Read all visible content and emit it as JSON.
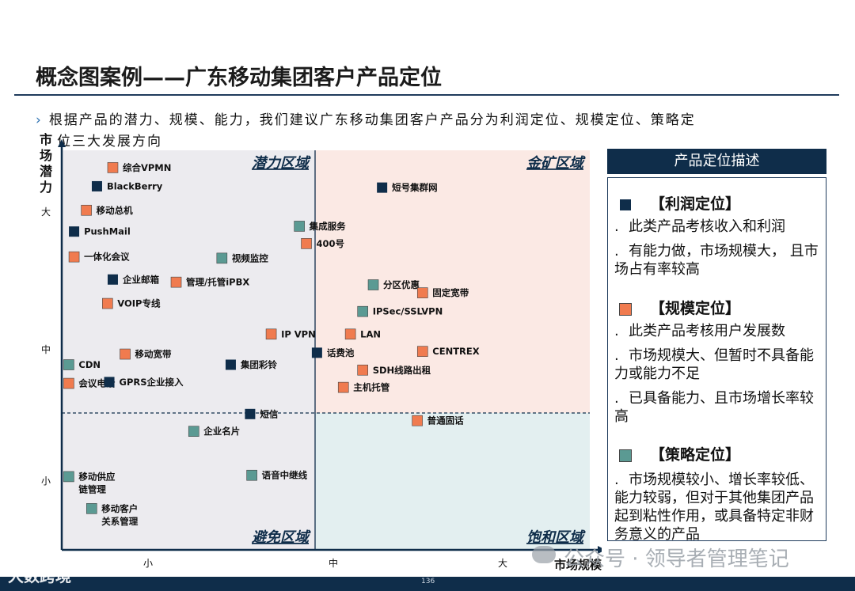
{
  "title": "概念图案例——广东移动集团客户产品定位",
  "intro": {
    "chevron": "›",
    "line1": "根据产品的潜力、规模、能力，我们建议广东移动集团客户产品分为利润定位、规模定位、策略定",
    "line2": "位三大发展方向"
  },
  "colors": {
    "profit": "#0f2d4a",
    "scale": "#f07b4f",
    "strategy": "#5b9a93",
    "quad_potential": "#ecebef",
    "quad_gold": "#fbe9e4",
    "quad_avoid": "#ecebef",
    "quad_saturated": "#e3eff0",
    "axis": "#0f2d4a",
    "quadrant_label": "#0f2d4a"
  },
  "chart_data": {
    "type": "scatter",
    "xlabel": "市场规模",
    "ylabel": "市场潜力",
    "x_ticks": [
      "小",
      "中",
      "大"
    ],
    "y_ticks": [
      "大",
      "中",
      "小"
    ],
    "xlim": [
      0,
      3
    ],
    "ylim": [
      0,
      3
    ],
    "quadrants": {
      "top_left": "潜力区域",
      "top_right": "金矿区域",
      "bottom_left": "避免区域",
      "bottom_right": "饱和区域"
    },
    "series": [
      {
        "category": "profit",
        "label_key": "利润定位"
      },
      {
        "category": "scale",
        "label_key": "规模定位"
      },
      {
        "category": "strategy",
        "label_key": "策略定位"
      }
    ],
    "points": [
      {
        "label": "综合VPMN",
        "cat": "scale",
        "x": 0.29,
        "y": 2.87
      },
      {
        "label": "BlackBerry",
        "cat": "profit",
        "x": 0.2,
        "y": 2.73
      },
      {
        "label": "移动总机",
        "cat": "scale",
        "x": 0.14,
        "y": 2.55
      },
      {
        "label": "PushMail",
        "cat": "profit",
        "x": 0.07,
        "y": 2.39
      },
      {
        "label": "一体化会议",
        "cat": "scale",
        "x": 0.07,
        "y": 2.2
      },
      {
        "label": "视频监控",
        "cat": "strategy",
        "x": 0.91,
        "y": 2.19
      },
      {
        "label": "企业邮箱",
        "cat": "profit",
        "x": 0.29,
        "y": 2.03
      },
      {
        "label": "管理/托管iPBX",
        "cat": "scale",
        "x": 0.65,
        "y": 2.01
      },
      {
        "label": "VOIP专线",
        "cat": "scale",
        "x": 0.26,
        "y": 1.85
      },
      {
        "label": "移动宽带",
        "cat": "scale",
        "x": 0.36,
        "y": 1.47
      },
      {
        "label": "CDN",
        "cat": "strategy",
        "x": 0.04,
        "y": 1.39
      },
      {
        "label": "集团彩铃",
        "cat": "profit",
        "x": 0.96,
        "y": 1.39
      },
      {
        "label": "会议电话",
        "cat": "scale",
        "x": 0.04,
        "y": 1.25
      },
      {
        "label": "GPRS企业接入",
        "cat": "profit",
        "x": 0.27,
        "y": 1.26
      },
      {
        "label": "短信",
        "cat": "profit",
        "x": 1.07,
        "y": 1.02
      },
      {
        "label": "企业名片",
        "cat": "strategy",
        "x": 0.75,
        "y": 0.89
      },
      {
        "label": "移动供应\n链管理",
        "cat": "strategy",
        "x": 0.04,
        "y": 0.55
      },
      {
        "label": "移动客户\n关系管理",
        "cat": "strategy",
        "x": 0.17,
        "y": 0.31
      },
      {
        "label": "短号集群网",
        "cat": "profit",
        "x": 1.82,
        "y": 2.72
      },
      {
        "label": "集成服务",
        "cat": "strategy",
        "x": 1.35,
        "y": 2.43
      },
      {
        "label": "400号",
        "cat": "scale",
        "x": 1.39,
        "y": 2.3
      },
      {
        "label": "分区优惠",
        "cat": "strategy",
        "x": 1.77,
        "y": 1.99
      },
      {
        "label": "固定宽带",
        "cat": "scale",
        "x": 2.05,
        "y": 1.93
      },
      {
        "label": "IPSec/SSLVPN",
        "cat": "strategy",
        "x": 1.71,
        "y": 1.79
      },
      {
        "label": "IP VPN",
        "cat": "scale",
        "x": 1.19,
        "y": 1.62
      },
      {
        "label": "LAN",
        "cat": "scale",
        "x": 1.64,
        "y": 1.62
      },
      {
        "label": "话费池",
        "cat": "profit",
        "x": 1.45,
        "y": 1.48
      },
      {
        "label": "CENTREX",
        "cat": "scale",
        "x": 2.05,
        "y": 1.49
      },
      {
        "label": "SDH线路出租",
        "cat": "scale",
        "x": 1.71,
        "y": 1.35
      },
      {
        "label": "主机托管",
        "cat": "scale",
        "x": 1.6,
        "y": 1.22
      },
      {
        "label": "普通固话",
        "cat": "scale",
        "x": 2.02,
        "y": 0.97
      },
      {
        "label": "语音中继线",
        "cat": "strategy",
        "x": 1.08,
        "y": 0.56
      }
    ]
  },
  "panel": {
    "header": "产品定位描述",
    "sections": [
      {
        "cat": "profit",
        "title": "【利润定位】",
        "items": [
          "此类产品考核收入和利润",
          "有能力做，市场规模大，  且市场占有率较高"
        ]
      },
      {
        "cat": "scale",
        "title": "【规模定位】",
        "items": [
          "此类产品考核用户发展数",
          "市场规模大、但暂时不具备能力或能力不足",
          "已具备能力、且市场增长率较高"
        ]
      },
      {
        "cat": "strategy",
        "title": "【策略定位】",
        "items": [
          "市场规模较小、增长率较低、能力较弱，但对于其他集团产品起到粘性作用，或具备特定非财务意义的产品"
        ]
      }
    ],
    "bullet": "."
  },
  "page_number": "136",
  "watermarks": {
    "left": "大数跨境",
    "right": "公众号 · 领导者管理笔记"
  }
}
